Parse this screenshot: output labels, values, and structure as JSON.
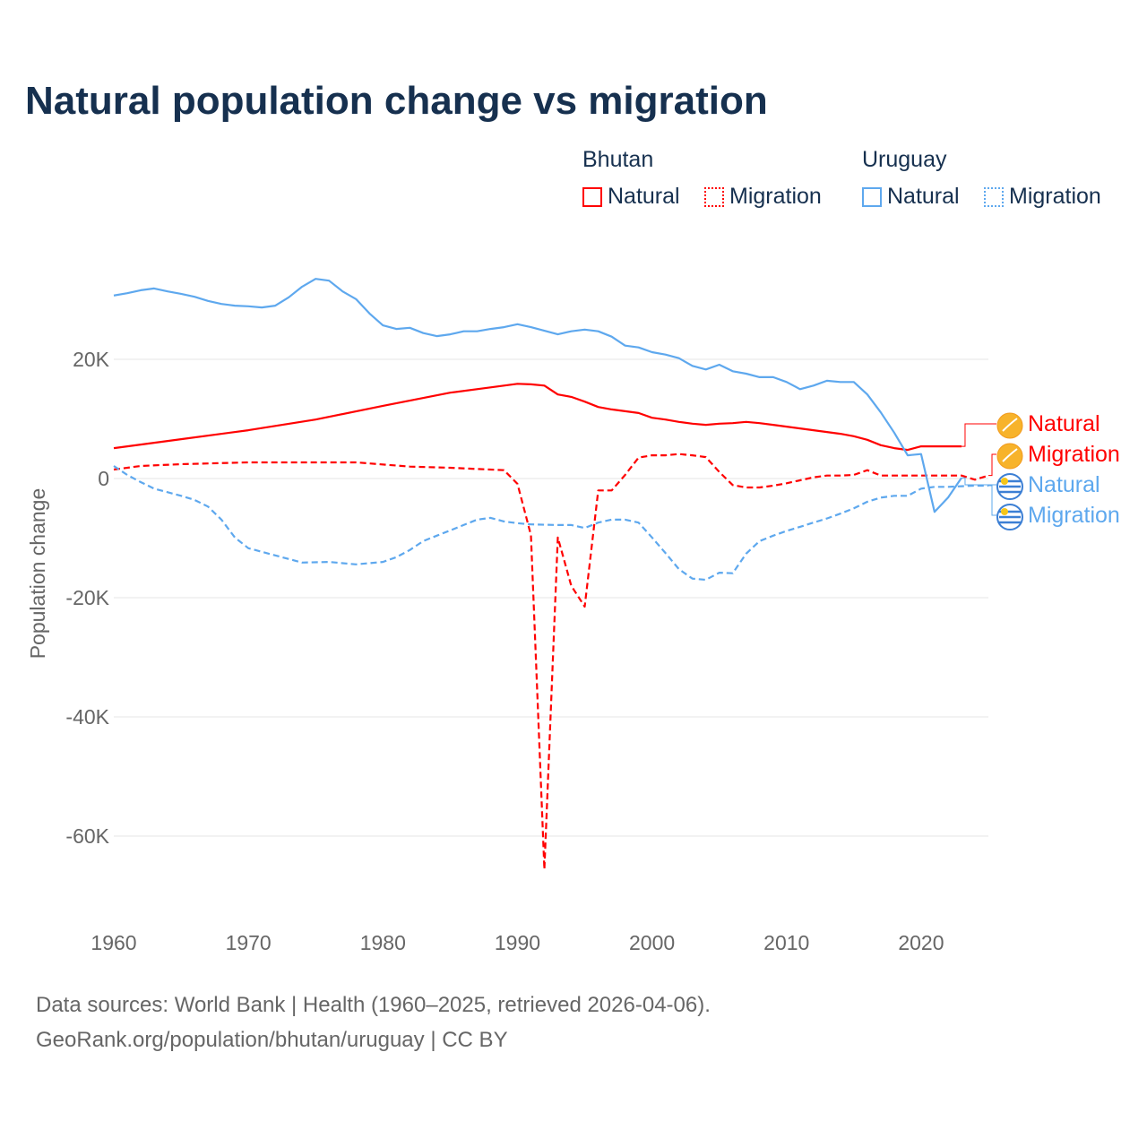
{
  "title": "Natural population change vs migration",
  "legend": {
    "groups": [
      {
        "name": "Bhutan",
        "items": [
          "Natural",
          "Migration"
        ],
        "color": "#ff0000"
      },
      {
        "name": "Uruguay",
        "items": [
          "Natural",
          "Migration"
        ],
        "color": "#5ea8ee"
      }
    ]
  },
  "footer": {
    "line1": "Data sources: World Bank | Health (1960–2025, retrieved 2026-04-06).",
    "line2": "GeoRank.org/population/bhutan/uruguay | CC BY"
  },
  "chart_data": {
    "type": "line",
    "title": "Natural population change vs migration",
    "xlabel": "",
    "ylabel": "Population change",
    "xlim": [
      1960,
      2025
    ],
    "ylim": [
      -70000,
      40000
    ],
    "xticks": [
      1960,
      1970,
      1980,
      1990,
      2000,
      2010,
      2020
    ],
    "xtick_labels": [
      "1960",
      "1970",
      "1980",
      "1990",
      "2000",
      "2010",
      "2020"
    ],
    "yticks": [
      20000,
      0,
      -20000,
      -40000,
      -60000
    ],
    "ytick_labels": [
      "20K",
      "0",
      "-20K",
      "-40K",
      "-60K"
    ],
    "grid": true,
    "legend_placement": "top-right",
    "series": [
      {
        "name": "Bhutan Natural",
        "label": "Natural",
        "color": "#ff0000",
        "dash": false,
        "x": [
          1960,
          1965,
          1970,
          1975,
          1980,
          1985,
          1988,
          1990,
          1991,
          1992,
          1993,
          1994,
          1995,
          1996,
          1997,
          1998,
          1999,
          2000,
          2001,
          2002,
          2003,
          2004,
          2005,
          2006,
          2007,
          2008,
          2009,
          2010,
          2011,
          2012,
          2013,
          2014,
          2015,
          2016,
          2017,
          2018,
          2019,
          2020,
          2021,
          2022,
          2023
        ],
        "y": [
          5100,
          6600,
          8100,
          9900,
          12200,
          14400,
          15300,
          15900,
          15800,
          15600,
          14100,
          13700,
          12900,
          12000,
          11600,
          11300,
          11000,
          10200,
          9900,
          9500,
          9200,
          9000,
          9200,
          9300,
          9500,
          9300,
          9000,
          8700,
          8400,
          8100,
          7800,
          7500,
          7100,
          6500,
          5600,
          5100,
          4800,
          5400,
          5400,
          5400,
          5400
        ]
      },
      {
        "name": "Bhutan Migration",
        "label": "Migration",
        "color": "#ff0000",
        "dash": true,
        "x": [
          1960,
          1962,
          1965,
          1970,
          1978,
          1982,
          1985,
          1989,
          1990,
          1991,
          1992,
          1993,
          1994,
          1995,
          1996,
          1997,
          1998,
          1999,
          2000,
          2001,
          2002,
          2003,
          2004,
          2005,
          2006,
          2007,
          2008,
          2009,
          2010,
          2011,
          2012,
          2013,
          2014,
          2015,
          2016,
          2017,
          2018,
          2019,
          2020,
          2021,
          2022,
          2023,
          2024,
          2025
        ],
        "y": [
          1500,
          2100,
          2400,
          2700,
          2700,
          2000,
          1800,
          1400,
          -900,
          -9500,
          -65600,
          -9900,
          -18000,
          -21500,
          -2000,
          -2000,
          600,
          3500,
          3900,
          3900,
          4100,
          3900,
          3600,
          1100,
          -1100,
          -1500,
          -1500,
          -1200,
          -800,
          -300,
          200,
          500,
          500,
          600,
          1400,
          500,
          500,
          500,
          500,
          500,
          500,
          500,
          -200,
          500
        ]
      },
      {
        "name": "Uruguay Natural",
        "label": "Natural",
        "color": "#5ea8ee",
        "dash": false,
        "x": [
          1960,
          1961,
          1962,
          1963,
          1964,
          1965,
          1966,
          1967,
          1968,
          1969,
          1970,
          1971,
          1972,
          1973,
          1974,
          1975,
          1976,
          1977,
          1978,
          1979,
          1980,
          1981,
          1982,
          1983,
          1984,
          1985,
          1986,
          1987,
          1988,
          1989,
          1990,
          1991,
          1992,
          1993,
          1994,
          1995,
          1996,
          1997,
          1998,
          1999,
          2000,
          2001,
          2002,
          2003,
          2004,
          2005,
          2006,
          2007,
          2008,
          2009,
          2010,
          2011,
          2012,
          2013,
          2014,
          2015,
          2016,
          2017,
          2018,
          2019,
          2020,
          2021,
          2022,
          2023
        ],
        "y": [
          30700,
          31100,
          31600,
          31900,
          31400,
          31000,
          30500,
          29800,
          29300,
          29000,
          28900,
          28700,
          29000,
          30400,
          32200,
          33500,
          33200,
          31400,
          30100,
          27700,
          25700,
          25100,
          25300,
          24400,
          23900,
          24200,
          24700,
          24700,
          25100,
          25400,
          25900,
          25400,
          24800,
          24200,
          24700,
          25000,
          24700,
          23800,
          22300,
          22000,
          21200,
          20800,
          20200,
          18900,
          18300,
          19100,
          18000,
          17600,
          17000,
          17000,
          16200,
          15000,
          15600,
          16400,
          16200,
          16200,
          14100,
          11100,
          7700,
          3900,
          4100,
          -5600,
          -3200,
          100
        ]
      },
      {
        "name": "Uruguay Migration",
        "label": "Migration",
        "color": "#5ea8ee",
        "dash": true,
        "x": [
          1960,
          1961,
          1962,
          1963,
          1965,
          1966,
          1967,
          1968,
          1969,
          1970,
          1972,
          1974,
          1976,
          1978,
          1980,
          1981,
          1982,
          1983,
          1984,
          1985,
          1986,
          1987,
          1988,
          1989,
          1990,
          1991,
          1993,
          1994,
          1995,
          1996,
          1997,
          1998,
          1999,
          2000,
          2001,
          2002,
          2003,
          2004,
          2005,
          2006,
          2007,
          2008,
          2009,
          2010,
          2011,
          2012,
          2013,
          2014,
          2015,
          2016,
          2017,
          2018,
          2019,
          2020,
          2021,
          2022,
          2023,
          2024,
          2025
        ],
        "y": [
          2100,
          600,
          -600,
          -1700,
          -2900,
          -3600,
          -4700,
          -6900,
          -9900,
          -11700,
          -12900,
          -14100,
          -14000,
          -14400,
          -14000,
          -13200,
          -12000,
          -10500,
          -9600,
          -8700,
          -7800,
          -6900,
          -6600,
          -7200,
          -7500,
          -7700,
          -7800,
          -7800,
          -8300,
          -7400,
          -6900,
          -6900,
          -7400,
          -9900,
          -12500,
          -15200,
          -16800,
          -17000,
          -15800,
          -15900,
          -12600,
          -10500,
          -9600,
          -8800,
          -8100,
          -7400,
          -6700,
          -5900,
          -5000,
          -3900,
          -3200,
          -2900,
          -2900,
          -1700,
          -1400,
          -1400,
          -1300,
          -1200,
          -1200
        ]
      }
    ]
  }
}
